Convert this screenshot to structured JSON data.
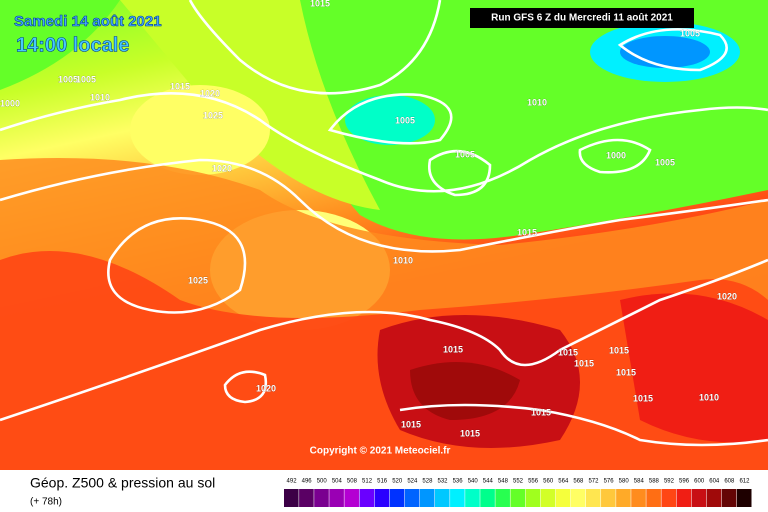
{
  "header": {
    "date": "Samedi 14 août 2021",
    "time": "14:00 locale",
    "run": "Run GFS 6 Z du Mercredi 11 août 2021"
  },
  "copyright": "Copyright © 2021 Meteociel.fr",
  "footer": {
    "title": "Géop. Z500 & pression au sol",
    "lead": "(+ 78h)"
  },
  "isobar_labels": [
    "1000",
    "1005",
    "1005",
    "1010",
    "1015",
    "1020",
    "1025",
    "1020",
    "1025",
    "1020",
    "1005",
    "1005",
    "1010",
    "1005",
    "1000",
    "1005",
    "1015",
    "1010",
    "1020",
    "1015",
    "1015",
    "1015",
    "1015",
    "1015",
    "1015",
    "1010",
    "1015",
    "1015",
    "1015",
    "1015"
  ],
  "colorbar": {
    "labels": [
      "492",
      "496",
      "500",
      "504",
      "508",
      "512",
      "516",
      "520",
      "524",
      "528",
      "532",
      "536",
      "540",
      "544",
      "548",
      "552",
      "556",
      "560",
      "564",
      "568",
      "572",
      "576",
      "580",
      "584",
      "588",
      "592",
      "596",
      "600",
      "604",
      "608",
      "612"
    ],
    "colors": [
      "#3c0046",
      "#5a0064",
      "#7a0090",
      "#9a00b4",
      "#b400d2",
      "#6a00ff",
      "#2a00ff",
      "#0032ff",
      "#0064ff",
      "#0096ff",
      "#00c8ff",
      "#00f0ff",
      "#00ffc8",
      "#00ff8c",
      "#28ff50",
      "#64ff28",
      "#a0ff1e",
      "#d2ff28",
      "#f5ff3c",
      "#ffff64",
      "#ffe650",
      "#ffc83c",
      "#ffaa28",
      "#ff8c1e",
      "#ff6e14",
      "#ff4614",
      "#f01e14",
      "#c80f14",
      "#a00a0a",
      "#640505",
      "#1e0000"
    ]
  }
}
